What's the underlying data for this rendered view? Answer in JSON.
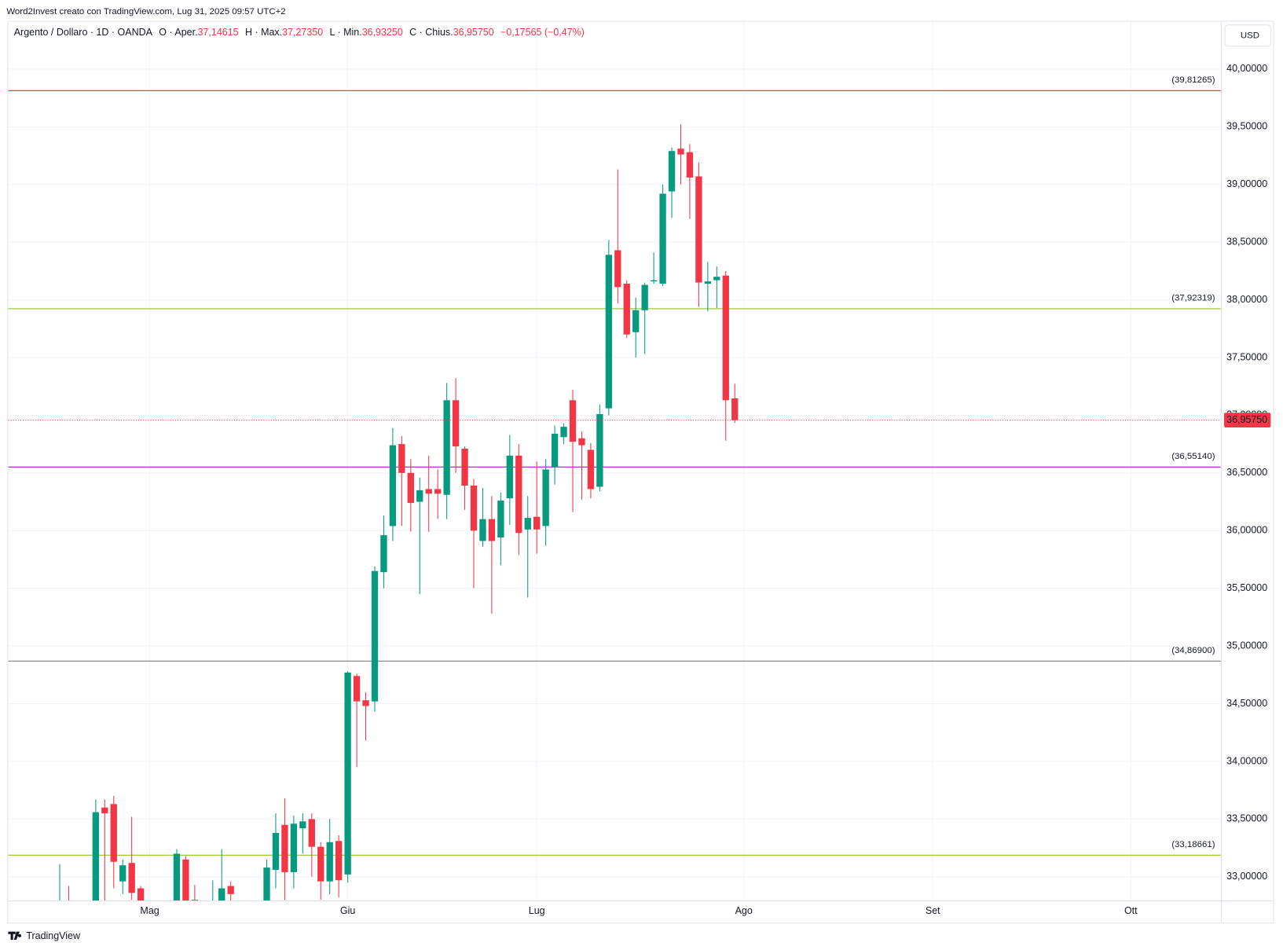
{
  "header": {
    "text": "Word2Invest creato con TradingView.com, Lug 31, 2025 09:57 UTC+2"
  },
  "chart_data": {
    "type": "candlestick",
    "symbol": "Argento / Dollaro · 1D · OANDA",
    "legend": [
      {
        "label": "O · Aper.",
        "value": "37,14615"
      },
      {
        "label": "H · Max.",
        "value": "37,27350"
      },
      {
        "label": "L · Min.",
        "value": "36,93250"
      },
      {
        "label": "C · Chius.",
        "value": "36,95750"
      }
    ],
    "change": "−0,17565 (−0,47%)",
    "currency": "USD",
    "x": [
      0,
      1,
      4,
      5,
      6,
      7,
      8,
      9,
      13,
      14,
      15,
      17,
      18,
      19,
      23,
      24,
      25,
      26,
      27,
      28,
      29,
      30,
      31,
      32,
      33,
      34,
      35,
      36,
      37,
      38,
      39,
      40,
      41,
      42,
      43,
      44,
      45,
      46,
      47,
      48,
      49,
      50,
      51,
      52,
      53,
      54,
      55,
      56,
      57,
      58,
      59,
      60,
      61,
      62,
      63,
      64,
      65,
      66,
      67,
      68,
      69,
      70,
      71,
      72,
      73,
      74,
      75
    ],
    "open": [
      32.5,
      32.62,
      32.6,
      33.6,
      33.63,
      32.96,
      33.12,
      32.9,
      32.7,
      33.15,
      32.8,
      32.7,
      32.75,
      32.92,
      32.75,
      33.06,
      33.45,
      33.04,
      33.42,
      33.5,
      33.26,
      32.96,
      33.31,
      33.02,
      34.74,
      34.53,
      34.52,
      35.64,
      36.04,
      36.75,
      36.5,
      36.25,
      36.36,
      36.36,
      36.31,
      37.13,
      36.71,
      36.39,
      35.91,
      36.1,
      35.94,
      36.28,
      36.65,
      36.01,
      36.12,
      36.04,
      36.55,
      36.81,
      37.13,
      36.8,
      36.7,
      36.38,
      37.06,
      38.43,
      38.14,
      37.72,
      37.91,
      38.16,
      38.14,
      38.94,
      39.31,
      39.28,
      39.07,
      38.14,
      38.17,
      38.21,
      37.14615
    ],
    "high": [
      33.11,
      32.92,
      33.67,
      33.67,
      33.7,
      33.15,
      33.52,
      32.92,
      33.24,
      33.18,
      32.93,
      32.97,
      33.24,
      32.96,
      33.15,
      33.55,
      33.68,
      33.53,
      33.55,
      33.55,
      33.3,
      33.5,
      33.36,
      34.78,
      34.76,
      34.6,
      35.69,
      36.13,
      36.89,
      36.82,
      36.62,
      36.46,
      36.65,
      36.53,
      37.28,
      37.32,
      36.73,
      36.45,
      36.37,
      36.3,
      36.33,
      36.83,
      36.75,
      36.3,
      36.6,
      36.62,
      36.91,
      36.93,
      37.22,
      36.86,
      36.76,
      37.09,
      38.52,
      39.13,
      38.17,
      38.02,
      38.15,
      38.41,
      39.0,
      39.32,
      39.52,
      39.35,
      39.19,
      38.33,
      38.29,
      38.25,
      37.2735
    ],
    "low": [
      32.3,
      32.4,
      32.5,
      32.7,
      32.9,
      32.85,
      32.8,
      32.6,
      32.6,
      32.6,
      32.6,
      32.6,
      32.7,
      32.75,
      32.7,
      32.9,
      32.8,
      32.9,
      33.2,
      33.0,
      32.8,
      32.85,
      32.82,
      32.95,
      33.95,
      34.18,
      34.43,
      35.5,
      35.91,
      36.04,
      35.99,
      35.45,
      35.99,
      36.1,
      36.1,
      36.5,
      36.18,
      35.5,
      35.86,
      35.28,
      35.7,
      36.05,
      35.79,
      35.42,
      35.8,
      35.87,
      36.4,
      36.75,
      36.16,
      36.27,
      36.28,
      36.34,
      37.0,
      37.97,
      37.67,
      37.5,
      37.53,
      38.14,
      38.12,
      38.71,
      39.0,
      38.7,
      37.94,
      37.9,
      37.93,
      36.78,
      36.9325
    ],
    "close": [
      32.62,
      32.55,
      33.56,
      33.55,
      33.13,
      33.1,
      32.86,
      32.7,
      33.2,
      32.75,
      32.7,
      32.78,
      32.9,
      32.85,
      33.08,
      33.38,
      33.04,
      33.46,
      33.48,
      33.26,
      32.96,
      33.3,
      32.97,
      34.77,
      34.52,
      34.48,
      35.65,
      35.96,
      36.74,
      36.5,
      36.24,
      36.35,
      36.32,
      36.32,
      37.13,
      36.73,
      36.39,
      36.0,
      36.1,
      35.91,
      36.26,
      36.65,
      35.98,
      36.11,
      36.01,
      36.53,
      36.84,
      36.9,
      36.77,
      36.74,
      36.36,
      37.01,
      38.39,
      38.11,
      37.7,
      37.91,
      38.13,
      38.17,
      38.92,
      39.29,
      39.26,
      39.06,
      38.15,
      38.16,
      38.2,
      37.13,
      36.9575
    ],
    "up_color": "#089981",
    "down_color": "#f23645",
    "xlim": [
      -5.727,
      129
    ],
    "xticks": [
      {
        "value": 10,
        "label": "Mag"
      },
      {
        "value": 32,
        "label": "Giu"
      },
      {
        "value": 53,
        "label": "Lug"
      },
      {
        "value": 76,
        "label": "Ago"
      },
      {
        "value": 97,
        "label": "Set"
      },
      {
        "value": 119,
        "label": "Ott"
      }
    ],
    "ylim": [
      32.794,
      40.397
    ],
    "yticks": [
      {
        "value": 33,
        "label": "33,00000"
      },
      {
        "value": 33.5,
        "label": "33,50000"
      },
      {
        "value": 34,
        "label": "34,00000"
      },
      {
        "value": 34.5,
        "label": "34,50000"
      },
      {
        "value": 35,
        "label": "35,00000"
      },
      {
        "value": 35.5,
        "label": "35,50000"
      },
      {
        "value": 36,
        "label": "36,00000"
      },
      {
        "value": 36.5,
        "label": "36,50000"
      },
      {
        "value": 37,
        "label": "37,00000"
      },
      {
        "value": 37.5,
        "label": "37,50000"
      },
      {
        "value": 38,
        "label": "38,00000"
      },
      {
        "value": 38.5,
        "label": "38,50000"
      },
      {
        "value": 39,
        "label": "39,00000"
      },
      {
        "value": 39.5,
        "label": "39,50000"
      },
      {
        "value": 40,
        "label": "40,00000"
      }
    ],
    "grid": true,
    "last_price": {
      "value": 36.9575,
      "label": "36,95750",
      "color": "#f23645"
    },
    "levels": [
      {
        "value": 39.81265,
        "label": "(39,81265)",
        "color": "#e8444a"
      },
      {
        "value": 37.92319,
        "label": "(37,92319)",
        "color": "#9bcb3b"
      },
      {
        "value": 36.5514,
        "label": "(36,55140)",
        "color": "#9c27b0"
      },
      {
        "value": 34.869,
        "label": "(34,86900)",
        "color": "#8a8a8a"
      },
      {
        "value": 33.18661,
        "label": "(33,18661)",
        "color": "#9bcb3b"
      }
    ]
  },
  "footer": {
    "brand": "TradingView"
  }
}
